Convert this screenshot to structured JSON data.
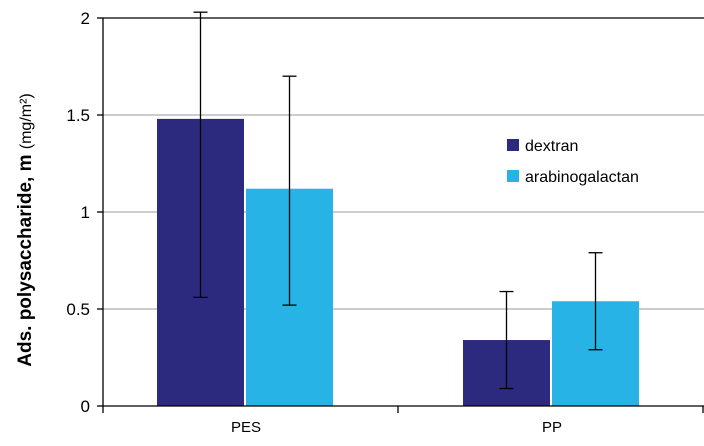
{
  "colors": {
    "dextran": "#2b2a7e",
    "arabinogalactan": "#27b3e6",
    "gridline": "#999999",
    "axis": "#000000"
  },
  "chart_data": {
    "type": "bar",
    "categories": [
      "PES",
      "PP"
    ],
    "series": [
      {
        "name": "dextran",
        "values": [
          1.48,
          0.34
        ],
        "errors": [
          [
            0.56,
            2.03
          ],
          [
            0.09,
            0.59
          ]
        ]
      },
      {
        "name": "arabinogalactan",
        "values": [
          1.12,
          0.54
        ],
        "errors": [
          [
            0.52,
            1.7
          ],
          [
            0.29,
            0.79
          ]
        ]
      }
    ],
    "ylabel_main": "Ads. polysaccharide, m ",
    "ylabel_unit": "(mg/m²)",
    "ylim": [
      0,
      2
    ],
    "yticks": [
      {
        "value": 0,
        "label": "0"
      },
      {
        "value": 0.5,
        "label": "0.5"
      },
      {
        "value": 1,
        "label": "1"
      },
      {
        "value": 1.5,
        "label": "1.5"
      },
      {
        "value": 2,
        "label": "2"
      }
    ],
    "grid": true,
    "legend_position": "right"
  }
}
